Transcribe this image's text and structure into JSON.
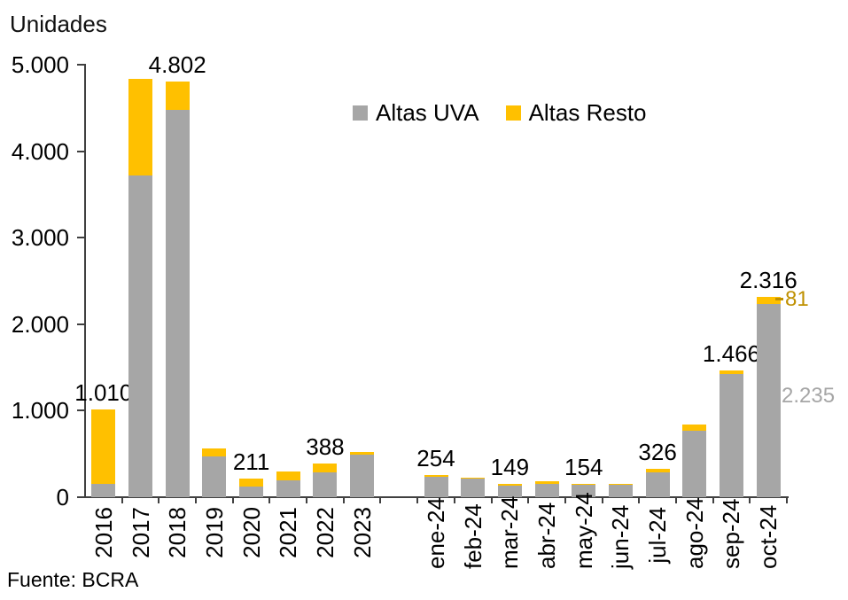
{
  "title": "Unidades",
  "source": "Fuente: BCRA",
  "legend": [
    {
      "label": "Altas UVA",
      "color": "#A6A6A6"
    },
    {
      "label": "Altas Resto",
      "color": "#FFC000"
    }
  ],
  "colors": {
    "uva": "#A6A6A6",
    "resto": "#FFC000",
    "axis": "#404040",
    "text": "#000000",
    "annotation_resto": "#BF9000",
    "annotation_uva": "#A6A6A6"
  },
  "chart_data": {
    "type": "bar",
    "stacked": true,
    "title": "Unidades",
    "ylabel": "Unidades",
    "xlabel": "",
    "ylim": [
      0,
      5000
    ],
    "ytick_interval": 1000,
    "ytick_labels": [
      "0",
      "1.000",
      "2.000",
      "3.000",
      "4.000",
      "5.000"
    ],
    "grid": false,
    "legend_position": "top-center",
    "gap_after_index": 7,
    "categories": [
      "2016",
      "2017",
      "2018",
      "2019",
      "2020",
      "2021",
      "2022",
      "2023",
      "ene-24",
      "feb-24",
      "mar-24",
      "abr-24",
      "may-24",
      "jun-24",
      "jul-24",
      "ago-24",
      "sep-24",
      "oct-24"
    ],
    "series": [
      {
        "name": "Altas UVA",
        "color": "#A6A6A6",
        "values": [
          155,
          3720,
          4480,
          470,
          126,
          197,
          287,
          495,
          240,
          215,
          136,
          158,
          141,
          140,
          290,
          770,
          1420,
          2235
        ]
      },
      {
        "name": "Altas Resto",
        "color": "#FFC000",
        "values": [
          855,
          1120,
          322,
          95,
          85,
          105,
          101,
          30,
          14,
          13,
          13,
          22,
          13,
          17,
          36,
          68,
          46,
          81
        ]
      }
    ],
    "totals": [
      1010,
      4840,
      4802,
      565,
      211,
      302,
      388,
      525,
      254,
      228,
      149,
      180,
      154,
      157,
      326,
      838,
      1466,
      2316
    ],
    "total_labels": [
      "1.010",
      "",
      "4.802",
      "",
      "211",
      "",
      "388",
      "",
      "254",
      "",
      "149",
      "",
      "154",
      "",
      "326",
      "",
      "1.466",
      "2.316"
    ],
    "annotations": [
      {
        "text": "81",
        "color": "#BF9000",
        "target": "oct-24 Altas Resto segment"
      },
      {
        "text": "2.235",
        "color": "#A6A6A6",
        "target": "oct-24 Altas UVA segment"
      }
    ]
  }
}
